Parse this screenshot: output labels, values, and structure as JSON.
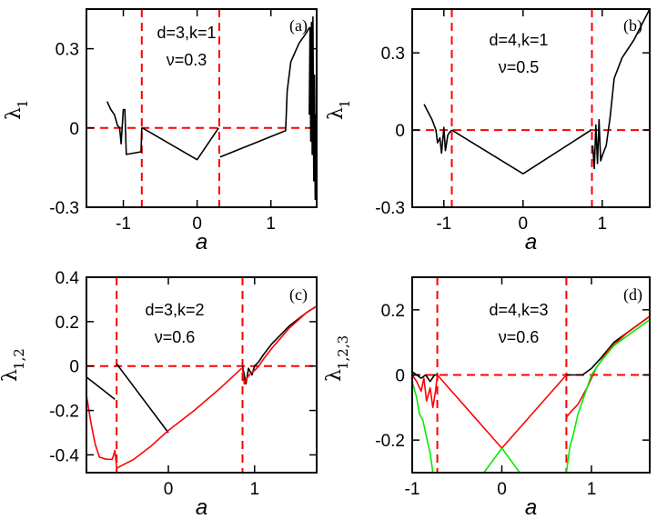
{
  "colors": {
    "black": "#000000",
    "red": "#ff0000",
    "green": "#00ee00",
    "dashed": "#ff0000"
  },
  "chart_data": [
    {
      "type": "line",
      "panel_label": "(a)",
      "annotation": [
        "d=3,k=1",
        "ν=0.3"
      ],
      "xlabel": "a",
      "ylabel": "λ",
      "ylabel_sub": "1",
      "xlim": [
        -1.5,
        1.62
      ],
      "ylim": [
        -0.3,
        0.45
      ],
      "xticks": [
        -1,
        0,
        1
      ],
      "xtick_labels": [
        "-1",
        "0",
        "1"
      ],
      "yticks": [
        -0.3,
        0,
        0.3
      ],
      "ytick_labels": [
        "-0.3",
        "0",
        "0.3"
      ],
      "hlines": [
        0
      ],
      "vlines": [
        -0.75,
        0.3
      ],
      "series": [
        {
          "name": "λ1",
          "color": "#000000",
          "points": [
            [
              -1.22,
              0.1
            ],
            [
              -1.17,
              0.07
            ],
            [
              -1.12,
              0.05
            ],
            [
              -1.08,
              0.01
            ],
            [
              -1.05,
              0.0
            ],
            [
              -1.03,
              -0.06
            ],
            [
              -1.0,
              0.07
            ],
            [
              -0.98,
              0.07
            ],
            [
              -0.96,
              -0.1
            ],
            [
              -0.76,
              -0.09
            ],
            [
              -0.75,
              0.0
            ]
          ]
        },
        {
          "name": "λ1",
          "color": "#000000",
          "points": [
            [
              -0.74,
              0.0
            ],
            [
              0.0,
              -0.12
            ],
            [
              0.29,
              0.0
            ]
          ]
        },
        {
          "name": "λ1",
          "color": "#000000",
          "points": [
            [
              0.31,
              -0.11
            ],
            [
              1.2,
              -0.01
            ],
            [
              1.22,
              0.14
            ],
            [
              1.27,
              0.25
            ],
            [
              1.38,
              0.32
            ],
            [
              1.48,
              0.36
            ],
            [
              1.52,
              0.38
            ]
          ]
        },
        {
          "name": "λ1",
          "color": "#000000",
          "points": [
            [
              1.52,
              0.05
            ],
            [
              1.53,
              0.38
            ],
            [
              1.54,
              -0.05
            ],
            [
              1.55,
              0.4
            ],
            [
              1.56,
              -0.1
            ],
            [
              1.57,
              0.42
            ],
            [
              1.58,
              -0.2
            ],
            [
              1.59,
              0.2
            ],
            [
              1.6,
              -0.27
            ],
            [
              1.61,
              0.05
            ],
            [
              1.62,
              -0.28
            ]
          ]
        }
      ]
    },
    {
      "type": "line",
      "panel_label": "(b)",
      "annotation": [
        "d=4,k=1",
        "ν=0.5"
      ],
      "xlabel": "a",
      "ylabel": "λ",
      "ylabel_sub": "1",
      "xlim": [
        -1.4,
        1.6
      ],
      "ylim": [
        -0.3,
        0.47
      ],
      "xticks": [
        -1,
        0,
        1
      ],
      "xtick_labels": [
        "-1",
        "0",
        "1"
      ],
      "yticks": [
        -0.3,
        0,
        0.3
      ],
      "ytick_labels": [
        "-0.3",
        "0",
        "0.3"
      ],
      "hlines": [
        0
      ],
      "vlines": [
        -0.9,
        0.87
      ],
      "series": [
        {
          "name": "λ1",
          "color": "#000000",
          "points": [
            [
              -1.25,
              0.1
            ],
            [
              -1.2,
              0.07
            ],
            [
              -1.15,
              0.04
            ],
            [
              -1.1,
              0.0
            ],
            [
              -1.08,
              -0.05
            ],
            [
              -1.05,
              -0.03
            ],
            [
              -1.03,
              -0.09
            ],
            [
              -1.0,
              0.01
            ],
            [
              -0.98,
              -0.08
            ],
            [
              -0.95,
              -0.02
            ],
            [
              -0.93,
              -0.01
            ],
            [
              -0.9,
              0.0
            ]
          ]
        },
        {
          "name": "λ1",
          "color": "#000000",
          "points": [
            [
              -0.9,
              0.0
            ],
            [
              0.0,
              -0.17
            ],
            [
              0.86,
              0.0
            ]
          ]
        },
        {
          "name": "λ1",
          "color": "#000000",
          "points": [
            [
              0.88,
              -0.06
            ],
            [
              0.9,
              -0.15
            ],
            [
              0.92,
              0.02
            ],
            [
              0.94,
              -0.13
            ],
            [
              0.96,
              0.04
            ],
            [
              0.98,
              -0.12
            ],
            [
              1.0,
              -0.1
            ],
            [
              1.05,
              -0.06
            ],
            [
              1.1,
              0.05
            ],
            [
              1.15,
              0.2
            ],
            [
              1.25,
              0.28
            ],
            [
              1.4,
              0.35
            ],
            [
              1.6,
              0.47
            ]
          ]
        }
      ]
    },
    {
      "type": "line",
      "panel_label": "(c)",
      "annotation": [
        "d=3,k=2",
        "ν=0.6"
      ],
      "xlabel": "a",
      "ylabel": "λ",
      "ylabel_sub": "1,2",
      "xlim": [
        -0.95,
        1.72
      ],
      "ylim": [
        -0.48,
        0.4
      ],
      "xticks": [
        0,
        1
      ],
      "xtick_labels": [
        "0",
        "1"
      ],
      "yticks": [
        -0.4,
        -0.2,
        0,
        0.2,
        0.4
      ],
      "ytick_labels": [
        "-0.4",
        "-0.2",
        "0",
        "0.2",
        "0.4"
      ],
      "hlines": [
        0
      ],
      "vlines": [
        -0.6,
        0.86
      ],
      "series": [
        {
          "name": "λ1",
          "color": "#000000",
          "points": [
            [
              -0.95,
              -0.05
            ],
            [
              -0.85,
              -0.08
            ],
            [
              -0.75,
              -0.11
            ],
            [
              -0.62,
              -0.15
            ]
          ]
        },
        {
          "name": "λ1",
          "color": "#000000",
          "points": [
            [
              -0.6,
              0.01
            ],
            [
              0.0,
              -0.3
            ]
          ]
        },
        {
          "name": "λ1",
          "color": "#000000",
          "points": [
            [
              0.86,
              0.0
            ],
            [
              0.9,
              -0.08
            ],
            [
              0.93,
              -0.01
            ],
            [
              0.97,
              -0.04
            ],
            [
              1.0,
              0.0
            ],
            [
              1.05,
              0.02
            ],
            [
              1.1,
              0.05
            ],
            [
              1.2,
              0.1
            ],
            [
              1.4,
              0.18
            ],
            [
              1.6,
              0.24
            ],
            [
              1.72,
              0.27
            ]
          ]
        },
        {
          "name": "λ2",
          "color": "#ff0000",
          "points": [
            [
              -0.95,
              -0.13
            ],
            [
              -0.9,
              -0.25
            ],
            [
              -0.85,
              -0.35
            ],
            [
              -0.8,
              -0.41
            ],
            [
              -0.72,
              -0.42
            ],
            [
              -0.65,
              -0.42
            ],
            [
              -0.62,
              -0.38
            ],
            [
              -0.6,
              -0.46
            ]
          ]
        },
        {
          "name": "λ2",
          "color": "#ff0000",
          "points": [
            [
              -0.6,
              -0.46
            ],
            [
              -0.4,
              -0.42
            ],
            [
              -0.2,
              -0.36
            ],
            [
              0.0,
              -0.29
            ],
            [
              0.3,
              -0.2
            ],
            [
              0.6,
              -0.1
            ],
            [
              0.85,
              -0.01
            ]
          ]
        },
        {
          "name": "λ2",
          "color": "#ff0000",
          "points": [
            [
              0.86,
              -0.01
            ],
            [
              0.88,
              -0.08
            ],
            [
              0.92,
              -0.05
            ],
            [
              0.96,
              -0.03
            ],
            [
              1.0,
              -0.02
            ],
            [
              1.05,
              0.0
            ],
            [
              1.1,
              0.03
            ],
            [
              1.2,
              0.08
            ],
            [
              1.4,
              0.17
            ],
            [
              1.6,
              0.24
            ],
            [
              1.72,
              0.27
            ]
          ]
        }
      ]
    },
    {
      "type": "line",
      "panel_label": "(d)",
      "annotation": [
        "d=4,k=3",
        "ν=0.6"
      ],
      "xlabel": "a",
      "ylabel": "λ",
      "ylabel_sub": "1,2,3",
      "xlim": [
        -1.0,
        1.65
      ],
      "ylim": [
        -0.3,
        0.3
      ],
      "xticks": [
        -1,
        0,
        1
      ],
      "xtick_labels": [
        "-1",
        "0",
        "1"
      ],
      "yticks": [
        -0.2,
        0,
        0.2
      ],
      "ytick_labels": [
        "-0.2",
        "0",
        "0.2"
      ],
      "hlines": [
        0
      ],
      "vlines": [
        -0.72,
        0.72
      ],
      "series": [
        {
          "name": "λ1",
          "color": "#000000",
          "points": [
            [
              -1.0,
              0.01
            ],
            [
              -0.95,
              0.0
            ],
            [
              -0.9,
              -0.01
            ],
            [
              -0.85,
              0.0
            ],
            [
              -0.8,
              -0.02
            ],
            [
              -0.75,
              0.0
            ],
            [
              -0.72,
              0.0
            ]
          ]
        },
        {
          "name": "λ1",
          "color": "#000000",
          "points": [
            [
              0.72,
              0.0
            ],
            [
              0.8,
              0.0
            ],
            [
              0.9,
              0.0
            ],
            [
              1.0,
              0.02
            ],
            [
              1.1,
              0.05
            ],
            [
              1.25,
              0.1
            ],
            [
              1.45,
              0.14
            ],
            [
              1.65,
              0.18
            ]
          ]
        },
        {
          "name": "λ2",
          "color": "#ff0000",
          "points": [
            [
              -1.0,
              0.0
            ],
            [
              -0.95,
              -0.02
            ],
            [
              -0.9,
              -0.05
            ],
            [
              -0.87,
              -0.01
            ],
            [
              -0.84,
              -0.08
            ],
            [
              -0.8,
              -0.04
            ],
            [
              -0.77,
              -0.1
            ],
            [
              -0.74,
              -0.05
            ],
            [
              -0.72,
              0.0
            ]
          ]
        },
        {
          "name": "λ2",
          "color": "#ff0000",
          "points": [
            [
              -0.72,
              0.0
            ],
            [
              0.0,
              -0.225
            ],
            [
              0.72,
              0.0
            ]
          ]
        },
        {
          "name": "λ2",
          "color": "#ff0000",
          "points": [
            [
              0.72,
              -0.13
            ],
            [
              0.78,
              -0.11
            ],
            [
              0.85,
              -0.09
            ],
            [
              0.95,
              -0.04
            ],
            [
              1.05,
              0.02
            ],
            [
              1.2,
              0.08
            ],
            [
              1.4,
              0.13
            ],
            [
              1.65,
              0.18
            ]
          ]
        },
        {
          "name": "λ3",
          "color": "#00ee00",
          "points": [
            [
              -1.0,
              -0.02
            ],
            [
              -0.95,
              -0.07
            ],
            [
              -0.92,
              -0.12
            ],
            [
              -0.88,
              -0.14
            ],
            [
              -0.85,
              -0.18
            ],
            [
              -0.8,
              -0.24
            ],
            [
              -0.77,
              -0.3
            ]
          ]
        },
        {
          "name": "λ3",
          "color": "#00ee00",
          "points": [
            [
              -0.2,
              -0.3
            ],
            [
              0.0,
              -0.225
            ],
            [
              0.2,
              -0.3
            ]
          ]
        },
        {
          "name": "λ3",
          "color": "#00ee00",
          "points": [
            [
              0.72,
              -0.3
            ],
            [
              0.76,
              -0.22
            ],
            [
              0.8,
              -0.18
            ],
            [
              0.85,
              -0.12
            ],
            [
              0.9,
              -0.08
            ],
            [
              0.95,
              -0.04
            ],
            [
              1.0,
              0.0
            ],
            [
              1.1,
              0.04
            ],
            [
              1.25,
              0.09
            ],
            [
              1.45,
              0.13
            ],
            [
              1.65,
              0.17
            ]
          ]
        }
      ]
    }
  ]
}
